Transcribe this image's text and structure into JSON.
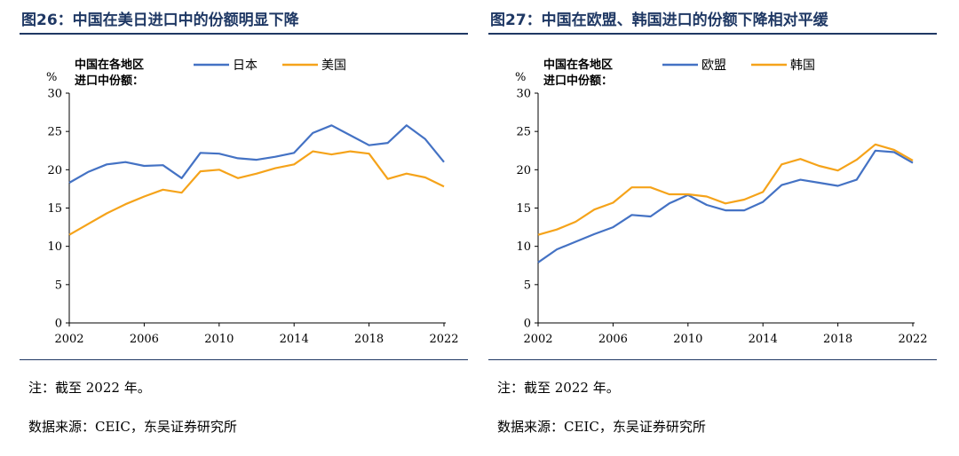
{
  "panels": [
    {
      "title": "图26：中国在美日进口中的份额明显下降",
      "note": "注：截至 2022 年。",
      "source": "数据来源：CEIC，东吴证券研究所"
    },
    {
      "title": "图27：中国在欧盟、韩国进口的份额下降相对平缓",
      "note": "注：截至 2022 年。",
      "source": "数据来源：CEIC，东吴证券研究所"
    }
  ],
  "chart_data": [
    {
      "type": "line",
      "ylabel": "%",
      "legend_title": [
        "中国在各地区",
        "进口中份额："
      ],
      "legend_position": "top",
      "x": [
        2002,
        2003,
        2004,
        2005,
        2006,
        2007,
        2008,
        2009,
        2010,
        2011,
        2012,
        2013,
        2014,
        2015,
        2016,
        2017,
        2018,
        2019,
        2020,
        2021,
        2022
      ],
      "x_ticks": [
        "2002",
        "2006",
        "2010",
        "2014",
        "2018",
        "2022"
      ],
      "y_ticks": [
        "0",
        "5",
        "10",
        "15",
        "20",
        "25",
        "30"
      ],
      "xlim": [
        2002,
        2022
      ],
      "ylim": [
        0,
        30
      ],
      "grid": false,
      "series": [
        {
          "name": "日本",
          "color": "#4472c4",
          "values": [
            18.3,
            19.7,
            20.7,
            21.0,
            20.5,
            20.6,
            18.9,
            22.2,
            22.1,
            21.5,
            21.3,
            21.7,
            22.2,
            24.8,
            25.8,
            24.5,
            23.2,
            23.5,
            25.8,
            24.0,
            21.0
          ]
        },
        {
          "name": "美国",
          "color": "#f5a31a",
          "values": [
            11.5,
            12.9,
            14.3,
            15.5,
            16.5,
            17.4,
            17.0,
            19.8,
            20.0,
            18.9,
            19.5,
            20.2,
            20.7,
            22.4,
            22.0,
            22.4,
            22.1,
            18.8,
            19.5,
            19.0,
            17.8
          ]
        }
      ]
    },
    {
      "type": "line",
      "ylabel": "%",
      "legend_title": [
        "中国在各地区",
        "进口中份额："
      ],
      "legend_position": "top",
      "x": [
        2002,
        2003,
        2004,
        2005,
        2006,
        2007,
        2008,
        2009,
        2010,
        2011,
        2012,
        2013,
        2014,
        2015,
        2016,
        2017,
        2018,
        2019,
        2020,
        2021,
        2022
      ],
      "x_ticks": [
        "2002",
        "2006",
        "2010",
        "2014",
        "2018",
        "2022"
      ],
      "y_ticks": [
        "0",
        "5",
        "10",
        "15",
        "20",
        "25",
        "30"
      ],
      "xlim": [
        2002,
        2022
      ],
      "ylim": [
        0,
        30
      ],
      "grid": false,
      "series": [
        {
          "name": "欧盟",
          "color": "#4472c4",
          "values": [
            7.9,
            9.6,
            10.6,
            11.6,
            12.5,
            14.1,
            13.9,
            15.6,
            16.7,
            15.4,
            14.7,
            14.7,
            15.8,
            18.0,
            18.7,
            18.3,
            17.9,
            18.7,
            22.5,
            22.3,
            20.9
          ]
        },
        {
          "name": "韩国",
          "color": "#f5a31a",
          "values": [
            11.5,
            12.2,
            13.2,
            14.8,
            15.7,
            17.7,
            17.7,
            16.8,
            16.8,
            16.5,
            15.6,
            16.1,
            17.1,
            20.7,
            21.4,
            20.5,
            19.9,
            21.3,
            23.3,
            22.6,
            21.2
          ]
        }
      ]
    }
  ]
}
